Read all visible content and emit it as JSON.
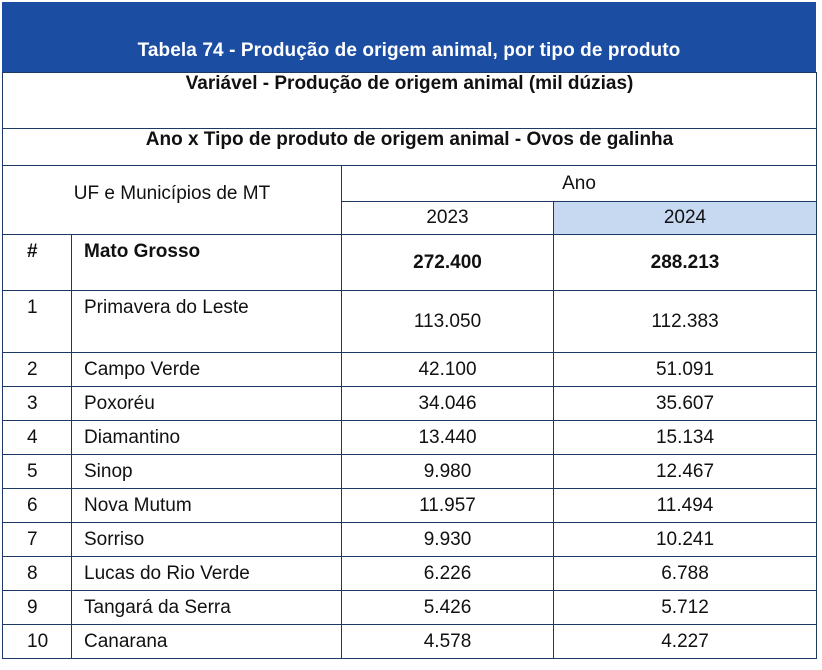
{
  "table_title": "Tabela 74 - Produção de origem animal, por tipo de produto",
  "variable": "Variável - Produção de origem animal (mil dúzias)",
  "subtitle": "Ano x Tipo de produto de origem animal - Ovos de galinha",
  "header": {
    "row_label": "UF e Municípios de MT",
    "group": "Ano",
    "years": [
      "2023",
      "2024"
    ]
  },
  "total_row": {
    "rank": "#",
    "name": "Mato Grosso",
    "v2023": "272.400",
    "v2024": "288.213"
  },
  "rows": [
    {
      "rank": "1",
      "name": "Primavera do Leste",
      "v2023": "113.050",
      "v2024": "112.383"
    },
    {
      "rank": "2",
      "name": "Campo Verde",
      "v2023": "42.100",
      "v2024": "51.091"
    },
    {
      "rank": "3",
      "name": "Poxoréu",
      "v2023": "34.046",
      "v2024": "35.607"
    },
    {
      "rank": "4",
      "name": "Diamantino",
      "v2023": "13.440",
      "v2024": "15.134"
    },
    {
      "rank": "5",
      "name": "Sinop",
      "v2023": "9.980",
      "v2024": "12.467"
    },
    {
      "rank": "6",
      "name": "Nova Mutum",
      "v2023": "11.957",
      "v2024": "11.494"
    },
    {
      "rank": "7",
      "name": "Sorriso",
      "v2023": "9.930",
      "v2024": "10.241"
    },
    {
      "rank": "8",
      "name": "Lucas do Rio Verde",
      "v2023": "6.226",
      "v2024": "6.788"
    },
    {
      "rank": "9",
      "name": "Tangará da Serra",
      "v2023": "5.426",
      "v2024": "5.712"
    },
    {
      "rank": "10",
      "name": "Canarana",
      "v2023": "4.578",
      "v2024": "4.227"
    }
  ],
  "colors": {
    "banner": "#1b4ea3",
    "highlight": "#c6d9f1",
    "border": "#1d3a66"
  }
}
